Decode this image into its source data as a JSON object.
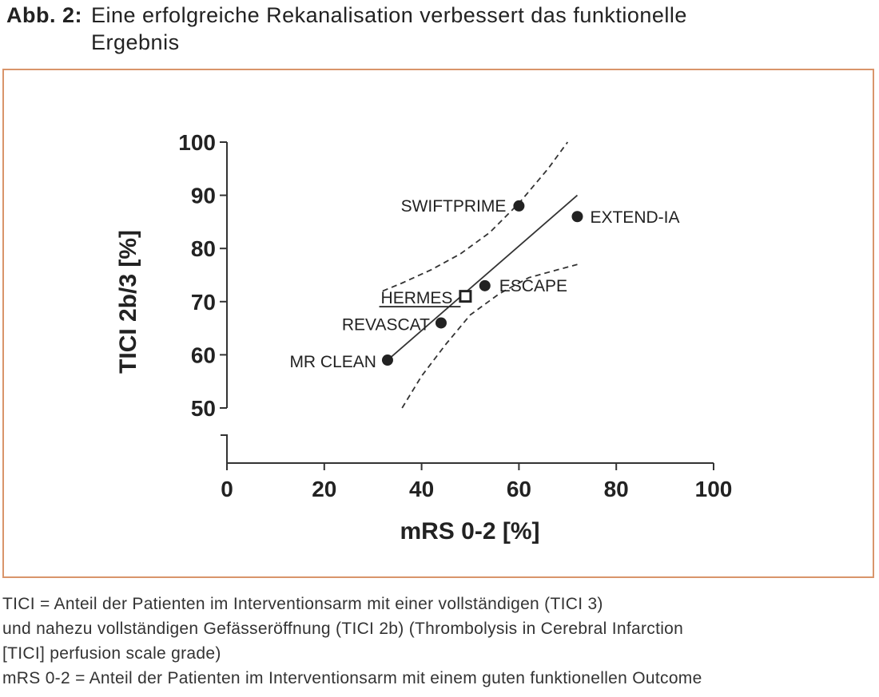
{
  "figure": {
    "label": "Abb. 2:",
    "title_line1": "Eine erfolgreiche Rekanalisation verbessert das funktionelle",
    "title_line2": "Ergebnis"
  },
  "chart_data": {
    "type": "scatter",
    "xlabel": "mRS 0-2 [%]",
    "ylabel": "TICI 2b/3 [%]",
    "xlim": [
      0,
      100
    ],
    "ylim": [
      50,
      100
    ],
    "x_ticks": [
      0,
      20,
      40,
      60,
      80,
      100
    ],
    "y_ticks": [
      50,
      60,
      70,
      80,
      90,
      100
    ],
    "y_axis_break": true,
    "grid": false,
    "points": [
      {
        "label": "MR CLEAN",
        "x": 33,
        "y": 59,
        "marker": "circle"
      },
      {
        "label": "REVASCAT",
        "x": 44,
        "y": 66,
        "marker": "circle"
      },
      {
        "label": "ESCAPE",
        "x": 53,
        "y": 73,
        "marker": "circle"
      },
      {
        "label": "SWIFTPRIME",
        "x": 60,
        "y": 88,
        "marker": "circle"
      },
      {
        "label": "EXTEND-IA",
        "x": 72,
        "y": 86,
        "marker": "circle"
      },
      {
        "label": "HERMES",
        "x": 49,
        "y": 71,
        "marker": "square-open",
        "underlined": true
      }
    ],
    "regression_line": {
      "x": [
        33,
        72
      ],
      "y": [
        59,
        90
      ]
    },
    "confidence_band": {
      "upper": {
        "x": [
          32,
          36,
          42,
          48,
          54,
          60,
          66,
          70
        ],
        "y": [
          72,
          73.5,
          76,
          79,
          83,
          88.5,
          95,
          100
        ]
      },
      "lower": {
        "x": [
          36,
          40,
          45,
          50,
          56,
          62,
          68,
          72
        ],
        "y": [
          50,
          56,
          62,
          67.5,
          71.5,
          74.5,
          76,
          77
        ]
      }
    }
  },
  "caption": {
    "lines": [
      "TICI = Anteil der Patienten im Interventionsarm mit einer vollständigen (TICI 3)",
      "und nahezu vollständigen Gefässeröffnung (TICI 2b) (Thrombolysis in Cerebral Infarction",
      "[TICI] perfusion scale grade)",
      "mRS 0-2 = Anteil der Patienten im Interventionsarm mit einem guten funktionellen Outcome"
    ]
  }
}
